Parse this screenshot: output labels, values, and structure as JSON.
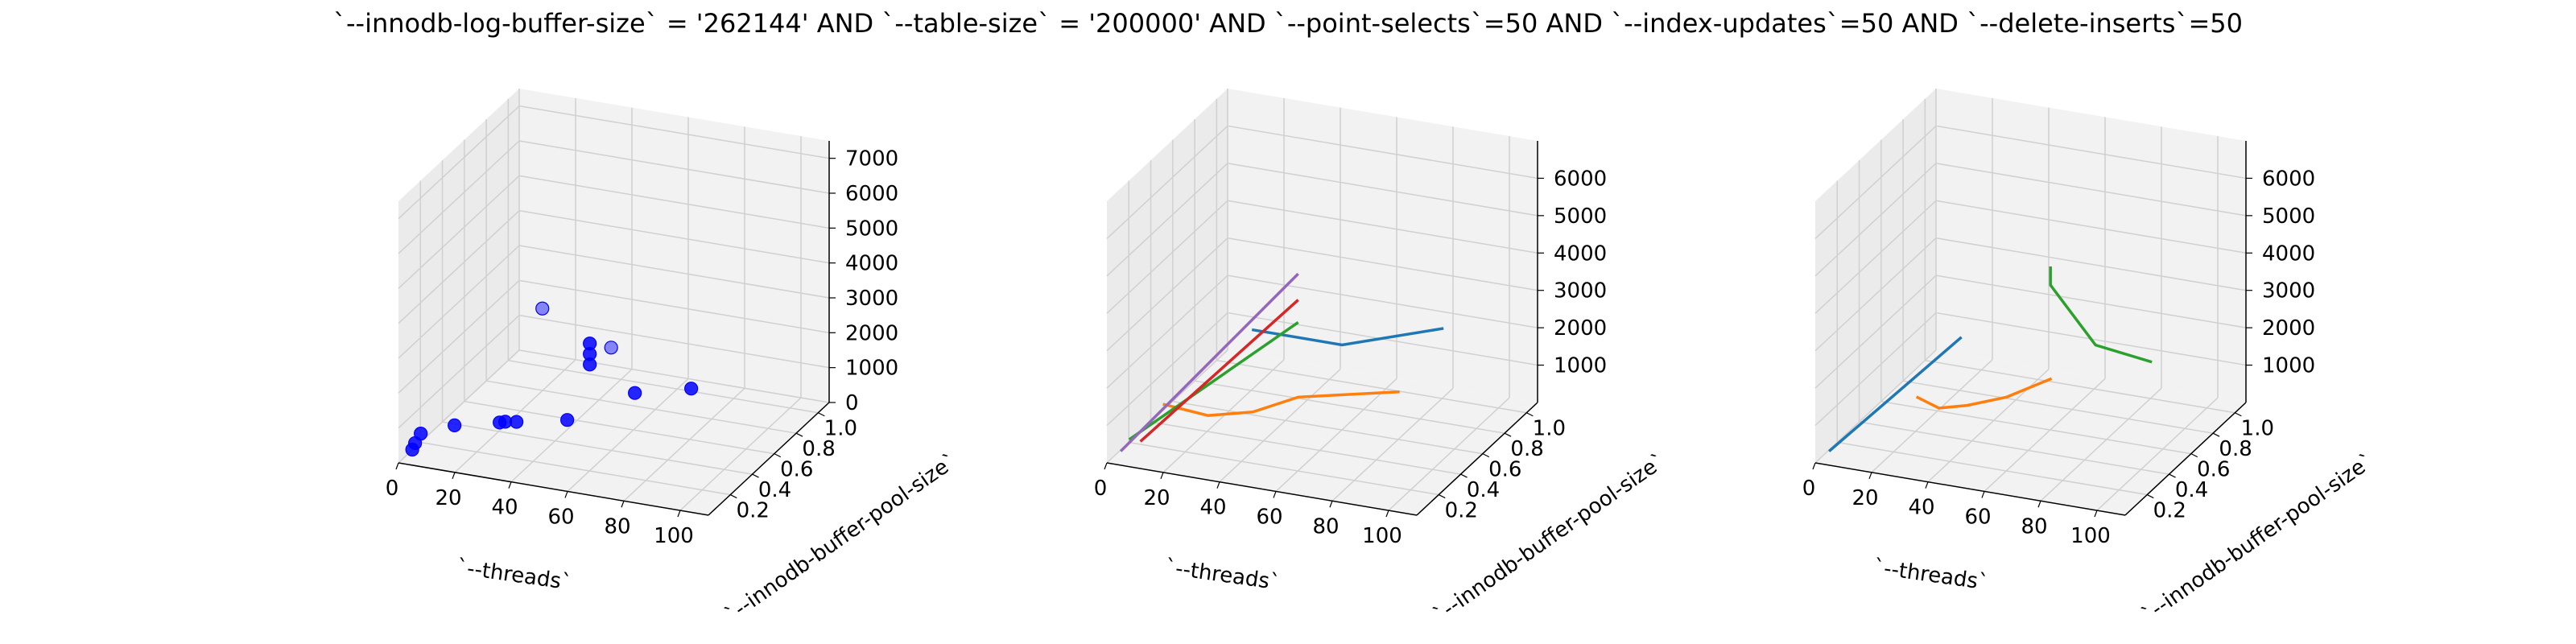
{
  "title": "`--innodb-log-buffer-size` = '262144' AND `--table-size` = '200000'  AND `--point-selects`=50 AND `--index-updates`=50 AND `--delete-inserts`=50",
  "chart_data": [
    {
      "type": "scatter",
      "xlabel": "`--threads`",
      "ylabel": "`--innodb-buffer-pool-size`",
      "ylabel_overlap": "`--innodb-buffer-pool-size`",
      "xticks": [
        "0",
        "20",
        "40",
        "60",
        "80",
        "100"
      ],
      "yticks": [
        "0.2",
        "0.4",
        "0.6",
        "0.8",
        "1.0"
      ],
      "zticks": [
        "0",
        "1000",
        "2000",
        "3000",
        "4000",
        "5000",
        "6000",
        "7000"
      ],
      "xlim": [
        0,
        110
      ],
      "ylim": [
        0,
        1.1
      ],
      "zlim": [
        0,
        7500
      ],
      "color": "#0000ff",
      "points": [
        {
          "x": 1,
          "y": 0.1,
          "z": 100
        },
        {
          "x": 2,
          "y": 0.1,
          "z": 300
        },
        {
          "x": 4,
          "y": 0.1,
          "z": 600
        },
        {
          "x": 16,
          "y": 0.1,
          "z": 1000
        },
        {
          "x": 32,
          "y": 0.1,
          "z": 1300
        },
        {
          "x": 34,
          "y": 0.1,
          "z": 1350
        },
        {
          "x": 38,
          "y": 0.1,
          "z": 1400
        },
        {
          "x": 56,
          "y": 0.1,
          "z": 1700
        },
        {
          "x": 16,
          "y": 0.9,
          "z": 2000
        },
        {
          "x": 64,
          "y": 0.1,
          "z": 4000
        },
        {
          "x": 64,
          "y": 0.1,
          "z": 3700
        },
        {
          "x": 64,
          "y": 0.1,
          "z": 3400
        },
        {
          "x": 56,
          "y": 0.5,
          "z": 2600
        },
        {
          "x": 80,
          "y": 0.1,
          "z": 2800
        },
        {
          "x": 100,
          "y": 0.1,
          "z": 3200
        }
      ]
    },
    {
      "type": "line",
      "xlabel": "`--threads`",
      "ylabel": "`--innodb-buffer-pool-size`",
      "ylabel_overlap": "`--innodb-buffer-pool-size`",
      "xticks": [
        "0",
        "20",
        "40",
        "60",
        "80",
        "100"
      ],
      "yticks": [
        "0.2",
        "0.4",
        "0.6",
        "0.8",
        "1.0"
      ],
      "zticks": [
        "1000",
        "2000",
        "3000",
        "4000",
        "5000",
        "6000"
      ],
      "xlim": [
        0,
        110
      ],
      "ylim": [
        0,
        1.1
      ],
      "zlim": [
        0,
        7000
      ],
      "series": [
        {
          "color": "#1f77b4",
          "points": [
            {
              "x": 32,
              "y": 0.5,
              "z": 2600
            },
            {
              "x": 64,
              "y": 0.5,
              "z": 2600
            },
            {
              "x": 100,
              "y": 0.5,
              "z": 3500
            }
          ]
        },
        {
          "color": "#ff7f0e",
          "points": [
            {
              "x": 16,
              "y": 0.1,
              "z": 1500
            },
            {
              "x": 32,
              "y": 0.1,
              "z": 1400
            },
            {
              "x": 48,
              "y": 0.1,
              "z": 1700
            },
            {
              "x": 64,
              "y": 0.1,
              "z": 2300
            },
            {
              "x": 100,
              "y": 0.1,
              "z": 2900
            }
          ]
        },
        {
          "color": "#2ca02c",
          "points": [
            {
              "x": 4,
              "y": 0.1,
              "z": 400
            },
            {
              "x": 64,
              "y": 0.1,
              "z": 4300
            }
          ]
        },
        {
          "color": "#d62728",
          "points": [
            {
              "x": 8,
              "y": 0.1,
              "z": 400
            },
            {
              "x": 64,
              "y": 0.1,
              "z": 4900
            }
          ]
        },
        {
          "color": "#9467bd",
          "points": [
            {
              "x": 1,
              "y": 0.1,
              "z": 50
            },
            {
              "x": 64,
              "y": 0.1,
              "z": 5600
            }
          ]
        }
      ]
    },
    {
      "type": "line",
      "xlabel": "`--threads`",
      "ylabel": "`--innodb-buffer-pool-size`",
      "ylabel_overlap": "`--innodb-buffer-pool-size`",
      "xticks": [
        "0",
        "20",
        "40",
        "60",
        "80",
        "100"
      ],
      "yticks": [
        "0.2",
        "0.4",
        "0.6",
        "0.8",
        "1.0"
      ],
      "zticks": [
        "1000",
        "2000",
        "3000",
        "4000",
        "5000",
        "6000"
      ],
      "xlim": [
        0,
        110
      ],
      "ylim": [
        0,
        1.1
      ],
      "zlim": [
        0,
        7000
      ],
      "series": [
        {
          "color": "#1f77b4",
          "points": [
            {
              "x": 1,
              "y": 0.1,
              "z": 50
            },
            {
              "x": 48,
              "y": 0.1,
              "z": 3700
            }
          ]
        },
        {
          "color": "#ff7f0e",
          "points": [
            {
              "x": 32,
              "y": 0.1,
              "z": 1900
            },
            {
              "x": 40,
              "y": 0.1,
              "z": 1700
            },
            {
              "x": 50,
              "y": 0.1,
              "z": 1900
            },
            {
              "x": 64,
              "y": 0.1,
              "z": 2300
            },
            {
              "x": 80,
              "y": 0.1,
              "z": 3000
            }
          ]
        },
        {
          "color": "#2ca02c",
          "points": [
            {
              "x": 64,
              "y": 0.5,
              "z": 4700
            },
            {
              "x": 64,
              "y": 0.5,
              "z": 4200
            },
            {
              "x": 80,
              "y": 0.5,
              "z": 2800
            },
            {
              "x": 100,
              "y": 0.5,
              "z": 2600
            }
          ]
        }
      ]
    }
  ]
}
